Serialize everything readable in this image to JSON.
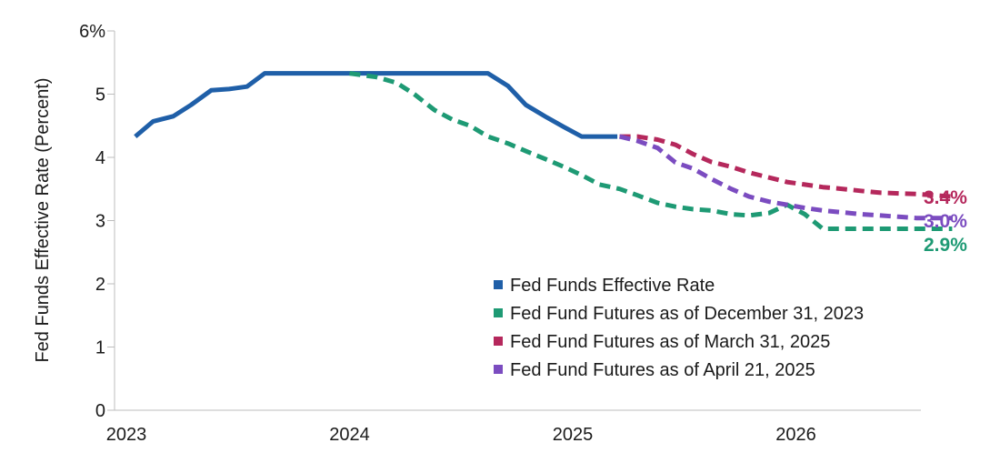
{
  "chart_data": {
    "type": "line",
    "title": "",
    "xlabel": "",
    "ylabel": "Fed Funds Effective Rate (Percent)",
    "ylim": [
      0,
      6
    ],
    "xlim": [
      2023.0,
      2026.75
    ],
    "x_ticks": [
      {
        "value": 2023,
        "label": "2023"
      },
      {
        "value": 2024,
        "label": "2024"
      },
      {
        "value": 2025,
        "label": "2025"
      },
      {
        "value": 2026,
        "label": "2026"
      }
    ],
    "y_ticks": [
      {
        "value": 0,
        "label": "0"
      },
      {
        "value": 1,
        "label": "1"
      },
      {
        "value": 2,
        "label": "2"
      },
      {
        "value": 3,
        "label": "3"
      },
      {
        "value": 4,
        "label": "4"
      },
      {
        "value": 5,
        "label": "5"
      },
      {
        "value": 6,
        "label": "6%"
      }
    ],
    "legend_position": "bottom-right",
    "series": [
      {
        "name": "Fed Funds Effective Rate",
        "color": "#1f5fa8",
        "style": "solid",
        "x": [
          2023.04,
          2023.12,
          2023.21,
          2023.29,
          2023.38,
          2023.46,
          2023.54,
          2023.62,
          2023.71,
          2023.79,
          2023.88,
          2023.96,
          2024.04,
          2024.12,
          2024.21,
          2024.29,
          2024.38,
          2024.46,
          2024.54,
          2024.62,
          2024.71,
          2024.79,
          2024.88,
          2024.96,
          2025.04,
          2025.12,
          2025.2
        ],
        "values": [
          4.33,
          4.57,
          4.65,
          4.83,
          5.06,
          5.08,
          5.12,
          5.33,
          5.33,
          5.33,
          5.33,
          5.33,
          5.33,
          5.33,
          5.33,
          5.33,
          5.33,
          5.33,
          5.33,
          5.33,
          5.13,
          4.83,
          4.64,
          4.48,
          4.33,
          4.33,
          4.33
        ]
      },
      {
        "name": "Fed Fund Futures as of December 31, 2023",
        "color": "#1e9a74",
        "style": "dashed",
        "end_label": "2.9%",
        "x": [
          2024.0,
          2024.12,
          2024.21,
          2024.29,
          2024.38,
          2024.46,
          2024.54,
          2024.62,
          2024.71,
          2024.79,
          2024.88,
          2024.96,
          2025.04,
          2025.12,
          2025.21,
          2025.29,
          2025.38,
          2025.46,
          2025.54,
          2025.62,
          2025.71,
          2025.79,
          2025.88,
          2025.96,
          2026.04,
          2026.12,
          2026.21,
          2026.29,
          2026.38,
          2026.46,
          2026.54,
          2026.62,
          2026.7
        ],
        "values": [
          5.33,
          5.27,
          5.18,
          5.0,
          4.75,
          4.6,
          4.5,
          4.33,
          4.22,
          4.1,
          3.97,
          3.85,
          3.72,
          3.57,
          3.5,
          3.4,
          3.28,
          3.22,
          3.18,
          3.16,
          3.1,
          3.08,
          3.12,
          3.25,
          3.1,
          2.87,
          2.87,
          2.87,
          2.87,
          2.87,
          2.87,
          2.87,
          2.87
        ]
      },
      {
        "name": "Fed Fund Futures as of March 31, 2025",
        "color": "#b5285c",
        "style": "dashed",
        "end_label": "3.4%",
        "x": [
          2025.21,
          2025.29,
          2025.38,
          2025.46,
          2025.54,
          2025.62,
          2025.71,
          2025.79,
          2025.88,
          2025.96,
          2026.04,
          2026.12,
          2026.21,
          2026.29,
          2026.38,
          2026.46,
          2026.54,
          2026.62,
          2026.7
        ],
        "values": [
          4.33,
          4.33,
          4.28,
          4.2,
          4.05,
          3.93,
          3.85,
          3.76,
          3.68,
          3.61,
          3.57,
          3.53,
          3.5,
          3.47,
          3.44,
          3.43,
          3.42,
          3.4,
          3.38
        ]
      },
      {
        "name": "Fed Fund Futures as of April 21, 2025",
        "color": "#7b4cc0",
        "style": "dashed",
        "end_label": "3.0%",
        "x": [
          2025.21,
          2025.29,
          2025.38,
          2025.46,
          2025.54,
          2025.62,
          2025.71,
          2025.79,
          2025.88,
          2025.96,
          2026.04,
          2026.12,
          2026.21,
          2026.29,
          2026.38,
          2026.46,
          2026.54,
          2026.62,
          2026.7
        ],
        "values": [
          4.33,
          4.26,
          4.15,
          3.92,
          3.82,
          3.66,
          3.5,
          3.38,
          3.3,
          3.25,
          3.2,
          3.16,
          3.13,
          3.1,
          3.08,
          3.06,
          3.04,
          3.04,
          3.04
        ]
      }
    ]
  }
}
